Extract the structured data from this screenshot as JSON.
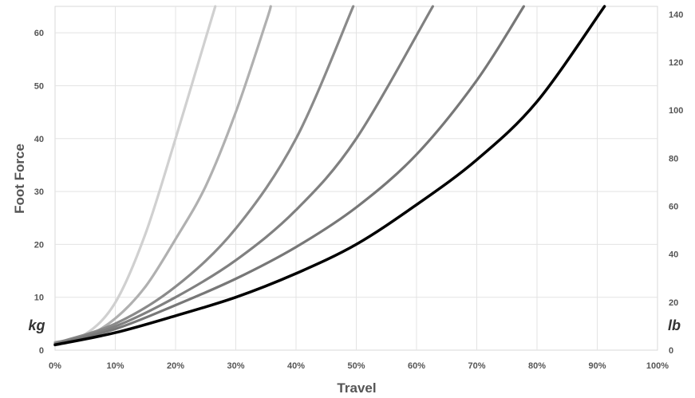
{
  "chart_data": {
    "type": "line",
    "xlabel": "Travel",
    "ylabel": "Foot Force",
    "y_unit_left": "kg",
    "y_unit_right": "lb",
    "x_ticks": [
      "0%",
      "10%",
      "20%",
      "30%",
      "40%",
      "50%",
      "60%",
      "70%",
      "80%",
      "90%",
      "100%"
    ],
    "y_ticks_left": [
      "0",
      "10",
      "20",
      "30",
      "40",
      "50",
      "60"
    ],
    "y_ticks_right": [
      "0",
      "20",
      "40",
      "60",
      "80",
      "100",
      "120",
      "140"
    ],
    "xlim": [
      0,
      100
    ],
    "ylim_left": [
      0,
      65
    ],
    "ylim_right": [
      0,
      143.3
    ],
    "grid": true,
    "series": [
      {
        "color": "#d0d0d0",
        "width": 3.2,
        "x": [
          0,
          5,
          10,
          15,
          20,
          25,
          26.6
        ],
        "y": [
          1.5,
          3.0,
          9.0,
          22.0,
          40.0,
          59.0,
          65.0
        ]
      },
      {
        "color": "#b0b0b0",
        "width": 3.2,
        "x": [
          0,
          5,
          10,
          15,
          20,
          25,
          30,
          35,
          35.8
        ],
        "y": [
          1.5,
          2.5,
          6.0,
          12.0,
          21.0,
          31.0,
          45.0,
          62.0,
          65.0
        ]
      },
      {
        "color": "#8a8a8a",
        "width": 3.2,
        "x": [
          0,
          10,
          20,
          30,
          40,
          49.5
        ],
        "y": [
          1.3,
          5.0,
          12.0,
          23.0,
          40.0,
          65.0
        ]
      },
      {
        "color": "#808080",
        "width": 3.2,
        "x": [
          0,
          10,
          20,
          30,
          40,
          50,
          62.7
        ],
        "y": [
          1.2,
          4.5,
          10.0,
          17.0,
          26.5,
          40.0,
          65.0
        ]
      },
      {
        "color": "#777777",
        "width": 3.2,
        "x": [
          0,
          10,
          20,
          30,
          40,
          50,
          60,
          70,
          77.8
        ],
        "y": [
          1.1,
          4.0,
          8.5,
          13.5,
          19.5,
          27.0,
          37.0,
          51.0,
          65.0
        ]
      },
      {
        "color": "#000000",
        "width": 3.5,
        "x": [
          0,
          10,
          20,
          30,
          40,
          50,
          60,
          70,
          80,
          91.2
        ],
        "y": [
          1.0,
          3.3,
          6.5,
          10.0,
          14.5,
          20.0,
          27.5,
          36.0,
          47.0,
          65.0
        ]
      }
    ]
  }
}
